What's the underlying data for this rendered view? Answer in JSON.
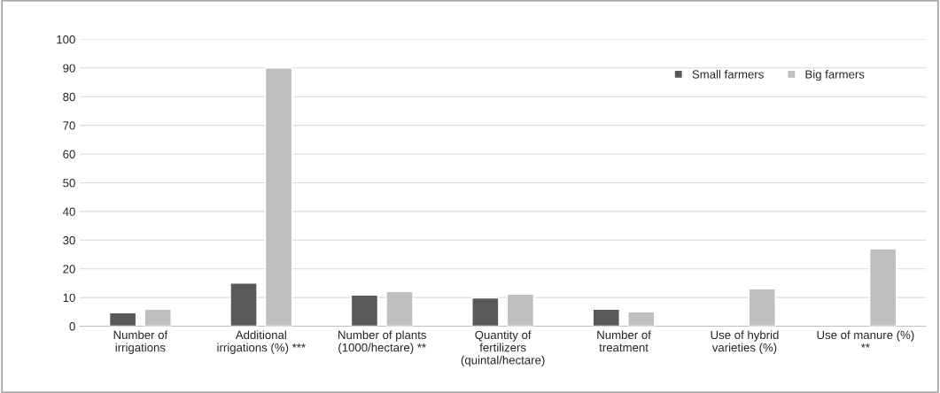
{
  "chart_data": {
    "type": "bar",
    "categories": [
      "Number of\nirrigations",
      "Additional\nirrigations (%) ***",
      "Number of plants\n(1000/hectare) **",
      "Quantity of\nfertilizers\n(quintal/hectare)",
      "Number of\ntreatment",
      "Use of hybrid\nvarieties (%)",
      "Use of manure (%)\n**"
    ],
    "series": [
      {
        "name": "Small farmers",
        "color": "#595959",
        "values": [
          4.7,
          15,
          10.9,
          9.9,
          5.9,
          null,
          null
        ]
      },
      {
        "name": "Big farmers",
        "color": "#bfbfbf",
        "values": [
          5.9,
          90,
          12.1,
          11.2,
          5,
          13,
          27
        ]
      }
    ],
    "ylim": [
      0,
      100
    ],
    "yticks": [
      0,
      10,
      20,
      30,
      40,
      50,
      60,
      70,
      80,
      90,
      100
    ],
    "grid": "y",
    "legend": "top right"
  }
}
